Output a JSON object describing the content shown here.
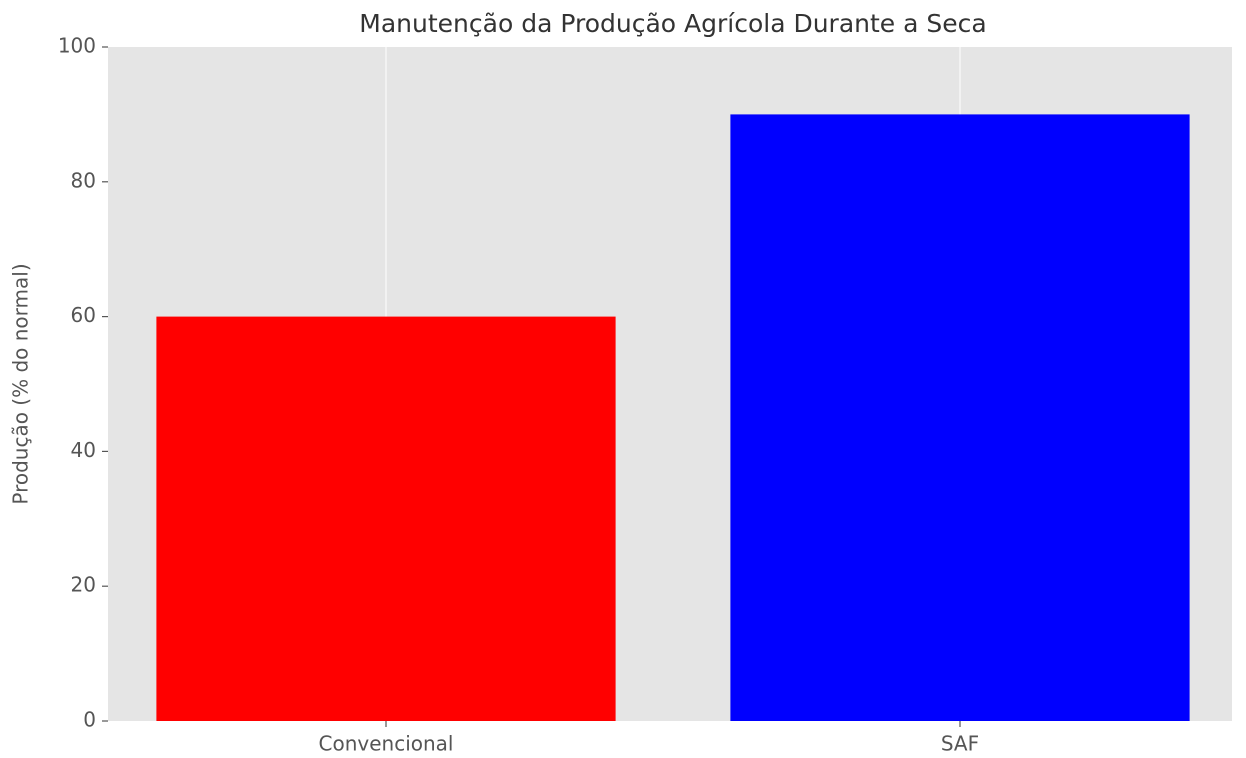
{
  "chart_data": {
    "type": "bar",
    "title": "Manutenção da Produção Agrícola Durante a Seca",
    "ylabel": "Produção (% do normal)",
    "categories": [
      "Convencional",
      "SAF"
    ],
    "values": [
      60,
      90
    ],
    "colors": [
      "#ff0000",
      "#0000ff"
    ],
    "ylim": [
      0,
      100
    ],
    "yticks": [
      0,
      20,
      40,
      60,
      80,
      100
    ],
    "grid": "x"
  }
}
